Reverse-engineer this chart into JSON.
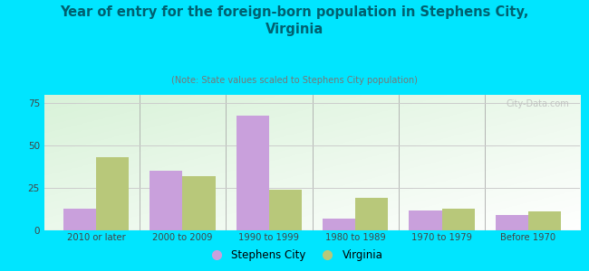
{
  "title": "Year of entry for the foreign-born population in Stephens City,\nVirginia",
  "subtitle": "(Note: State values scaled to Stephens City population)",
  "categories": [
    "2010 or later",
    "2000 to 2009",
    "1990 to 1999",
    "1980 to 1989",
    "1970 to 1979",
    "Before 1970"
  ],
  "stephens_city": [
    13,
    35,
    68,
    7,
    12,
    9
  ],
  "virginia": [
    43,
    32,
    24,
    19,
    13,
    11
  ],
  "bar_color_stephens": "#c9a0dc",
  "bar_color_virginia": "#b8c87a",
  "background_outer": "#00e5ff",
  "title_color": "#006070",
  "subtitle_color": "#777777",
  "ylim": [
    0,
    80
  ],
  "yticks": [
    0,
    25,
    50,
    75
  ],
  "legend_stephens": "Stephens City",
  "legend_virginia": "Virginia",
  "watermark": "City-Data.com"
}
